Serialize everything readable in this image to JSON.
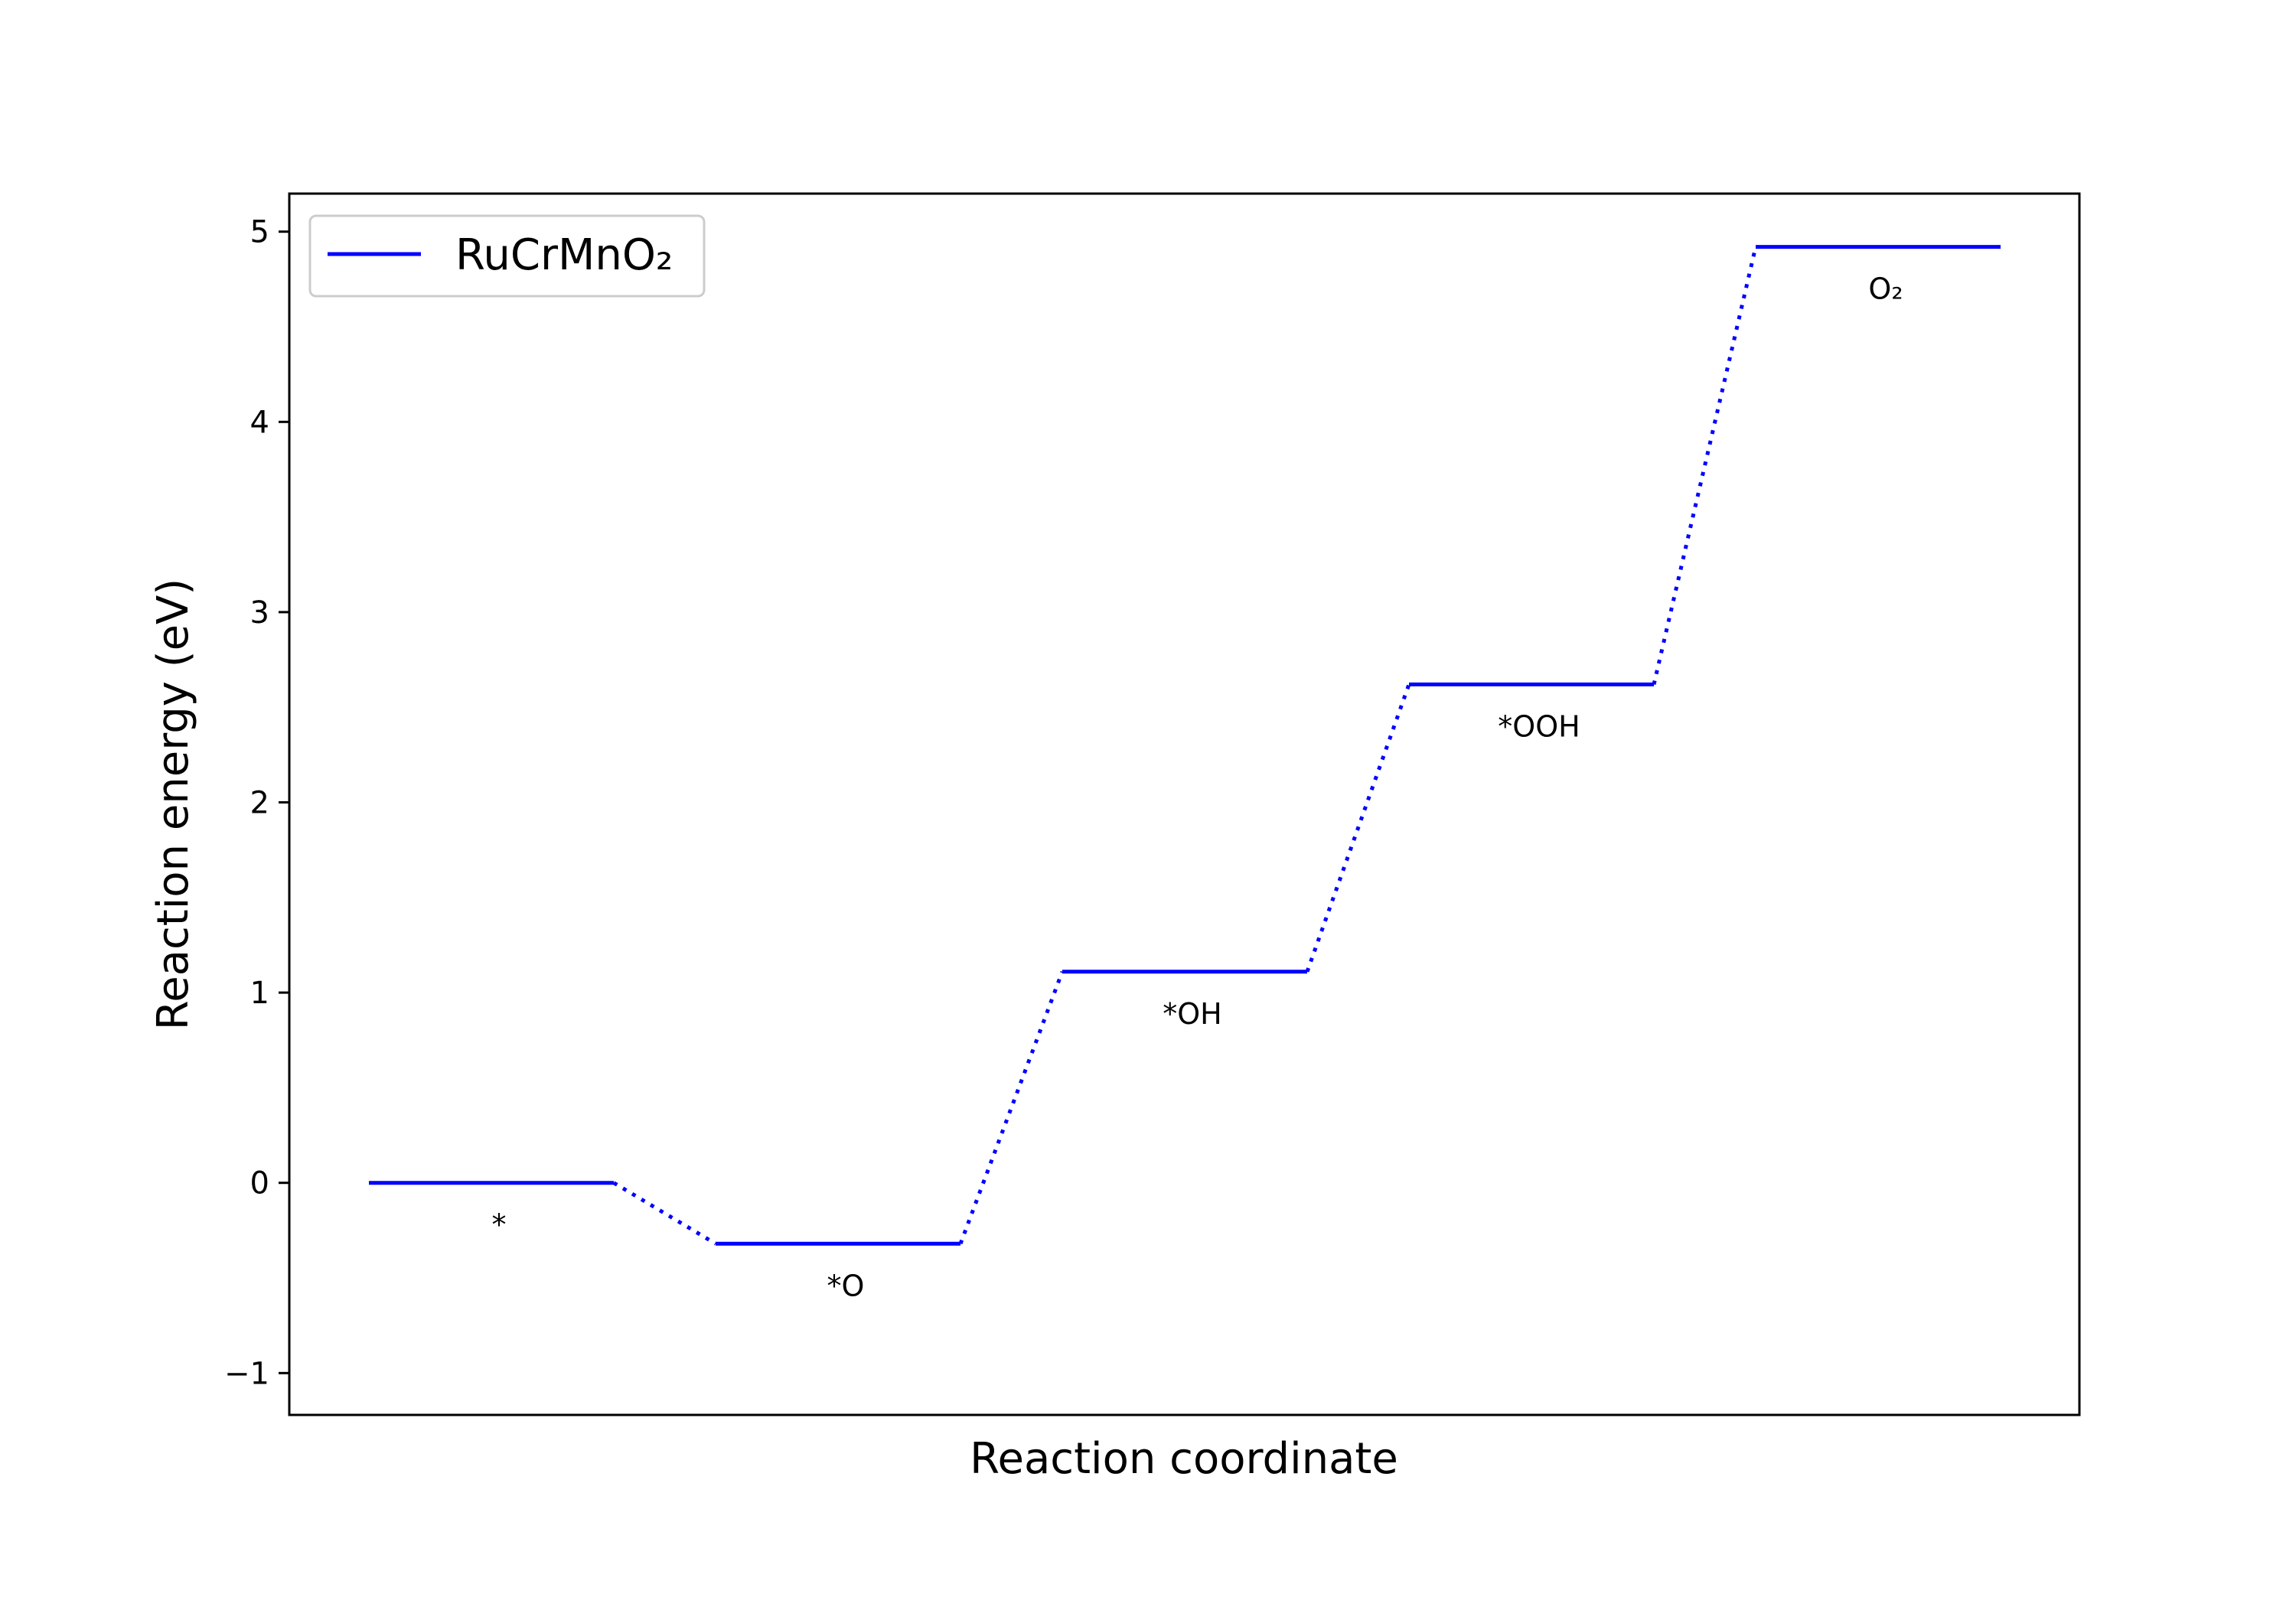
{
  "chart_data": {
    "type": "line",
    "title": "",
    "xlabel": "Reaction coordinate",
    "ylabel": "Reaction energy (eV)",
    "ylim": [
      -1.22,
      5.2
    ],
    "yticks": [
      -1,
      0,
      1,
      2,
      3,
      4,
      5
    ],
    "ytick_labels": [
      "−1",
      "0",
      "1",
      "2",
      "3",
      "4",
      "5"
    ],
    "grid": false,
    "legend": {
      "placement": "top-left",
      "entries": [
        "RuCrMnO₂"
      ]
    },
    "colors": {
      "series": "#0000ff"
    },
    "series": [
      {
        "name": "RuCrMnO₂",
        "steps": [
          {
            "label": "*",
            "energy": 0.0
          },
          {
            "label": "*O",
            "energy": -0.32
          },
          {
            "label": "*OH",
            "energy": 1.11
          },
          {
            "label": "*OOH",
            "energy": 2.62
          },
          {
            "label": "O₂",
            "energy": 4.92
          }
        ]
      }
    ]
  }
}
